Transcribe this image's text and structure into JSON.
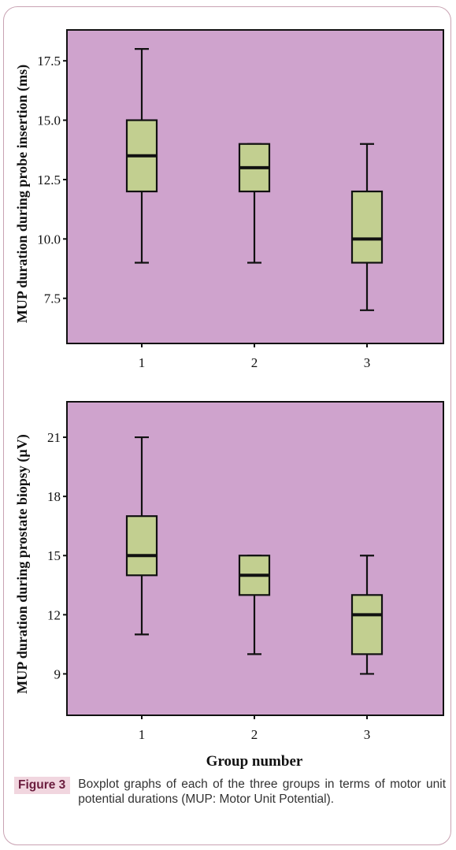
{
  "colors": {
    "plot_bg": "#cfa3cd",
    "box_fill": "#c2cf90",
    "line": "#111111",
    "figure_label_bg": "#f1d6df",
    "figure_label_text": "#6b1d3e"
  },
  "caption": {
    "label": "Figure 3",
    "text": "Boxplot graphs of each of the three groups in terms of motor unit potential durations (MUP: Motor Unit Potential)."
  },
  "chart_data": [
    {
      "type": "boxplot",
      "ylabel": "MUP duration during probe insertion (ms)",
      "ylim": [
        5.6,
        18.8
      ],
      "yticks": [
        7.5,
        10.0,
        12.5,
        15.0,
        17.5
      ],
      "ytick_labels": [
        "7.5",
        "10.0",
        "12.5",
        "15.0",
        "17.5"
      ],
      "categories": [
        "1",
        "2",
        "3"
      ],
      "boxes": [
        {
          "category": "1",
          "min": 9,
          "q1": 12,
          "median": 13.5,
          "q3": 15,
          "max": 18
        },
        {
          "category": "2",
          "min": 9,
          "q1": 12,
          "median": 13,
          "q3": 14,
          "max": 14
        },
        {
          "category": "3",
          "min": 7,
          "q1": 9,
          "median": 10,
          "q3": 12,
          "max": 14
        }
      ]
    },
    {
      "type": "boxplot",
      "ylabel": "MUP duration during prostate biopsy (µV)",
      "xlabel": "Group number",
      "ylim": [
        6.9,
        22.8
      ],
      "yticks": [
        9,
        12,
        15,
        18,
        21
      ],
      "ytick_labels": [
        "9",
        "12",
        "15",
        "18",
        "21"
      ],
      "categories": [
        "1",
        "2",
        "3"
      ],
      "boxes": [
        {
          "category": "1",
          "min": 11,
          "q1": 14,
          "median": 15,
          "q3": 17,
          "max": 21
        },
        {
          "category": "2",
          "min": 10,
          "q1": 13,
          "median": 14,
          "q3": 15,
          "max": 15
        },
        {
          "category": "3",
          "min": 9,
          "q1": 10,
          "median": 12,
          "q3": 13,
          "max": 15
        }
      ]
    }
  ]
}
